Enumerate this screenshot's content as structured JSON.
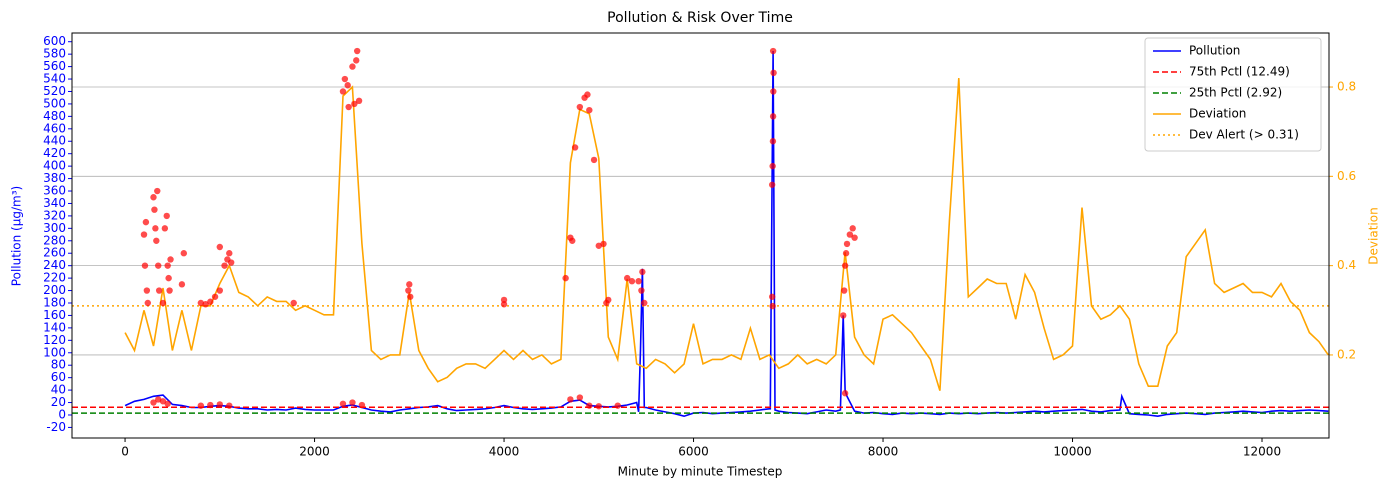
{
  "chart_data": {
    "type": "line",
    "title": "Pollution & Risk Over Time",
    "x_label": "Minute by minute Timestep",
    "y_label": "Pollution (µg/m³)",
    "y2_label": "Deviation",
    "y_label_color": "blue",
    "y2_label_color": "orange",
    "xlim": [
      -560,
      12707
    ],
    "xticks": [
      0,
      2000,
      4000,
      6000,
      8000,
      10000,
      12000
    ],
    "ylim": [
      -37,
      614
    ],
    "yticks": [
      -20,
      0,
      20,
      40,
      60,
      80,
      100,
      120,
      140,
      160,
      180,
      200,
      220,
      240,
      260,
      280,
      300,
      320,
      340,
      360,
      380,
      400,
      420,
      440,
      460,
      480,
      500,
      520,
      540,
      560,
      580,
      600
    ],
    "y2lim": [
      0.014,
      0.921
    ],
    "y2ticks": [
      0.2,
      0.4,
      0.6,
      0.8
    ],
    "grid": "y2",
    "legend": "upper right",
    "series": [
      {
        "name": "Pollution",
        "color": "blue",
        "axis": "y",
        "x": [
          0,
          100,
          200,
          300,
          400,
          500,
          600,
          700,
          800,
          900,
          1000,
          1100,
          1200,
          1300,
          1400,
          1500,
          1600,
          1700,
          1800,
          1900,
          2000,
          2100,
          2200,
          2300,
          2400,
          2500,
          2600,
          2700,
          2800,
          2900,
          3000,
          3100,
          3200,
          3300,
          3400,
          3500,
          3600,
          3700,
          3800,
          3900,
          4000,
          4100,
          4200,
          4300,
          4400,
          4500,
          4600,
          4700,
          4800,
          4900,
          5000,
          5100,
          5200,
          5300,
          5400,
          5420,
          5440,
          5460,
          5480,
          5500,
          5600,
          5700,
          5800,
          5900,
          6000,
          6100,
          6200,
          6300,
          6400,
          6500,
          6600,
          6700,
          6800,
          6810,
          6840,
          6860,
          6900,
          7000,
          7100,
          7200,
          7300,
          7400,
          7500,
          7550,
          7580,
          7600,
          7620,
          7700,
          7800,
          7900,
          8000,
          8100,
          8200,
          8300,
          8400,
          8500,
          8600,
          8700,
          8800,
          8900,
          9000,
          9100,
          9200,
          9300,
          9400,
          9500,
          9600,
          9700,
          9800,
          9900,
          10000,
          10100,
          10200,
          10300,
          10400,
          10500,
          10520,
          10600,
          10700,
          10800,
          10900,
          11000,
          11100,
          11200,
          11300,
          11400,
          11500,
          11600,
          11700,
          11800,
          11900,
          12000,
          12100,
          12200,
          12300,
          12400,
          12500,
          12600,
          12700
        ],
        "values": [
          15,
          22,
          25,
          30,
          32,
          17,
          15,
          12,
          12,
          14,
          15,
          14,
          11,
          10,
          10,
          8,
          9,
          8,
          11,
          9,
          8,
          8,
          8,
          14,
          16,
          12,
          8,
          6,
          5,
          8,
          10,
          12,
          13,
          15,
          10,
          7,
          8,
          9,
          10,
          12,
          15,
          12,
          10,
          9,
          10,
          11,
          13,
          22,
          24,
          15,
          14,
          13,
          14,
          16,
          20,
          5,
          105,
          235,
          12,
          12,
          8,
          5,
          2,
          -2,
          3,
          4,
          2,
          3,
          4,
          5,
          6,
          8,
          10,
          10,
          585,
          8,
          6,
          4,
          3,
          2,
          5,
          8,
          6,
          8,
          160,
          40,
          30,
          6,
          3,
          4,
          2,
          1,
          3,
          2,
          3,
          2,
          1,
          3,
          2,
          3,
          2,
          3,
          4,
          3,
          4,
          5,
          6,
          5,
          6,
          7,
          8,
          9,
          6,
          5,
          7,
          8,
          30,
          2,
          1,
          0,
          -2,
          1,
          2,
          3,
          2,
          1,
          3,
          4,
          5,
          6,
          5,
          4,
          6,
          7,
          6,
          7,
          8,
          7,
          6
        ]
      },
      {
        "name": "Deviation",
        "color": "orange",
        "axis": "y2",
        "x": [
          0,
          100,
          200,
          300,
          400,
          500,
          600,
          700,
          800,
          900,
          1000,
          1100,
          1200,
          1300,
          1400,
          1500,
          1600,
          1700,
          1800,
          1900,
          2000,
          2100,
          2200,
          2300,
          2400,
          2500,
          2600,
          2700,
          2800,
          2900,
          3000,
          3100,
          3200,
          3300,
          3400,
          3500,
          3600,
          3700,
          3800,
          3900,
          4000,
          4100,
          4200,
          4300,
          4400,
          4500,
          4600,
          4700,
          4800,
          4900,
          5000,
          5100,
          5200,
          5300,
          5400,
          5500,
          5600,
          5700,
          5800,
          5900,
          6000,
          6100,
          6200,
          6300,
          6400,
          6500,
          6600,
          6700,
          6800,
          6900,
          7000,
          7100,
          7200,
          7300,
          7400,
          7500,
          7600,
          7700,
          7800,
          7900,
          8000,
          8100,
          8200,
          8300,
          8400,
          8500,
          8600,
          8700,
          8800,
          8900,
          9000,
          9100,
          9200,
          9300,
          9400,
          9500,
          9600,
          9700,
          9800,
          9900,
          10000,
          10100,
          10200,
          10300,
          10400,
          10500,
          10600,
          10700,
          10800,
          10900,
          11000,
          11100,
          11200,
          11300,
          11400,
          11500,
          11600,
          11700,
          11800,
          11900,
          12000,
          12100,
          12200,
          12300,
          12400,
          12500,
          12600,
          12700
        ],
        "values": [
          0.25,
          0.21,
          0.3,
          0.22,
          0.35,
          0.21,
          0.3,
          0.21,
          0.31,
          0.31,
          0.36,
          0.4,
          0.34,
          0.33,
          0.31,
          0.33,
          0.32,
          0.32,
          0.3,
          0.31,
          0.3,
          0.29,
          0.29,
          0.78,
          0.8,
          0.45,
          0.21,
          0.19,
          0.2,
          0.2,
          0.34,
          0.21,
          0.17,
          0.14,
          0.15,
          0.17,
          0.18,
          0.18,
          0.17,
          0.19,
          0.21,
          0.19,
          0.21,
          0.19,
          0.2,
          0.18,
          0.19,
          0.63,
          0.75,
          0.74,
          0.64,
          0.24,
          0.19,
          0.37,
          0.18,
          0.17,
          0.19,
          0.18,
          0.16,
          0.18,
          0.27,
          0.18,
          0.19,
          0.19,
          0.2,
          0.19,
          0.26,
          0.19,
          0.2,
          0.17,
          0.18,
          0.2,
          0.18,
          0.19,
          0.18,
          0.2,
          0.43,
          0.24,
          0.2,
          0.18,
          0.28,
          0.29,
          0.27,
          0.25,
          0.22,
          0.19,
          0.12,
          0.5,
          0.82,
          0.33,
          0.35,
          0.37,
          0.36,
          0.36,
          0.28,
          0.38,
          0.34,
          0.26,
          0.19,
          0.2,
          0.22,
          0.53,
          0.31,
          0.28,
          0.29,
          0.31,
          0.28,
          0.18,
          0.13,
          0.13,
          0.22,
          0.25,
          0.42,
          0.45,
          0.48,
          0.36,
          0.34,
          0.35,
          0.36,
          0.34,
          0.34,
          0.33,
          0.36,
          0.32,
          0.3,
          0.25,
          0.23,
          0.2
        ]
      },
      {
        "type": "scatter",
        "color": "red",
        "axis": "y",
        "x": [
          200,
          210,
          220,
          230,
          240,
          300,
          310,
          320,
          330,
          340,
          350,
          360,
          400,
          420,
          440,
          450,
          460,
          470,
          480,
          600,
          620,
          300,
          350,
          400,
          450,
          800,
          850,
          900,
          950,
          1000,
          1050,
          1080,
          1100,
          1120,
          1000,
          800,
          900,
          1000,
          1100,
          1780,
          2300,
          2320,
          2350,
          2400,
          2420,
          2450,
          2470,
          2360,
          2440,
          2300,
          2400,
          2500,
          2990,
          3000,
          3010,
          4000,
          4000,
          4650,
          4700,
          4720,
          4750,
          4800,
          4850,
          4880,
          4900,
          4950,
          5000,
          5050,
          5080,
          5100,
          5300,
          5350,
          5420,
          5450,
          5480,
          5460,
          4700,
          4800,
          4900,
          5000,
          5200,
          6830,
          6835,
          6838,
          6840,
          6842,
          6845,
          6840,
          6830,
          6835,
          7580,
          7590,
          7600,
          7610,
          7650,
          7680,
          7700,
          7620,
          7600
        ],
        "values": [
          290,
          240,
          310,
          200,
          180,
          350,
          330,
          300,
          280,
          360,
          240,
          200,
          180,
          300,
          320,
          240,
          220,
          200,
          250,
          210,
          260,
          20,
          25,
          22,
          18,
          180,
          178,
          182,
          190,
          200,
          240,
          250,
          260,
          245,
          270,
          15,
          16,
          17,
          15,
          180,
          520,
          540,
          530,
          560,
          500,
          585,
          505,
          495,
          570,
          18,
          20,
          16,
          200,
          210,
          190,
          185,
          178,
          220,
          285,
          280,
          430,
          495,
          510,
          515,
          490,
          410,
          272,
          275,
          180,
          185,
          220,
          215,
          215,
          200,
          180,
          230,
          25,
          28,
          15,
          14,
          15,
          370,
          400,
          440,
          480,
          520,
          550,
          585,
          190,
          175,
          160,
          200,
          240,
          260,
          290,
          300,
          285,
          275,
          35
        ]
      }
    ],
    "hlines": [
      {
        "label": "75th Pctl (12.49)",
        "value": 12.49,
        "color": "red",
        "style": "dashed",
        "axis": "y"
      },
      {
        "label": "25th Pctl (2.92)",
        "value": 2.92,
        "color": "green",
        "style": "dashed",
        "axis": "y"
      },
      {
        "label": "Dev Alert (> 0.31)",
        "value": 0.31,
        "color": "orange",
        "style": "dotted",
        "axis": "y2"
      }
    ]
  }
}
